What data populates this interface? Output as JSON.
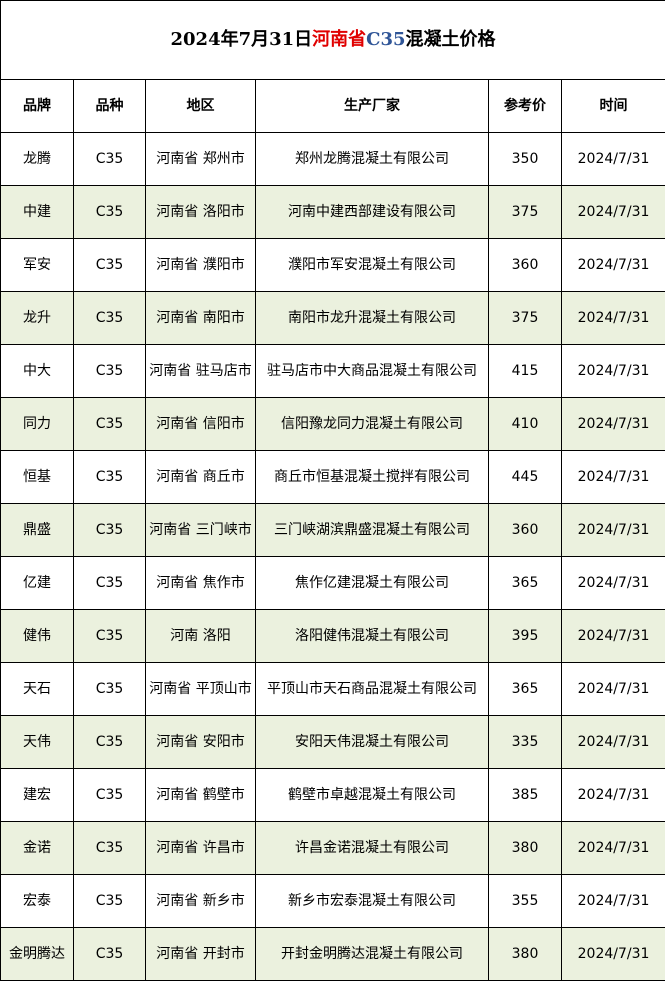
{
  "title": {
    "date": "2024年7月31日",
    "province": "河南省",
    "grade": "C35",
    "suffix": "混凝土价格"
  },
  "table": {
    "header": [
      "品牌",
      "品种",
      "地区",
      "生产厂家",
      "参考价",
      "时间"
    ],
    "rows": [
      [
        "龙腾",
        "C35",
        "河南省 郑州市",
        "郑州龙腾混凝土有限公司",
        350,
        "2024/7/31"
      ],
      [
        "中建",
        "C35",
        "河南省 洛阳市",
        "河南中建西部建设有限公司",
        375,
        "2024/7/31"
      ],
      [
        "军安",
        "C35",
        "河南省 濮阳市",
        "濮阳市军安混凝土有限公司",
        360,
        "2024/7/31"
      ],
      [
        "龙升",
        "C35",
        "河南省 南阳市",
        "南阳市龙升混凝土有限公司",
        375,
        "2024/7/31"
      ],
      [
        "中大",
        "C35",
        "河南省 驻马店市",
        "驻马店市中大商品混凝土有限公司",
        415,
        "2024/7/31"
      ],
      [
        "同力",
        "C35",
        "河南省 信阳市",
        "信阳豫龙同力混凝土有限公司",
        410,
        "2024/7/31"
      ],
      [
        "恒基",
        "C35",
        "河南省 商丘市",
        "商丘市恒基混凝土搅拌有限公司",
        445,
        "2024/7/31"
      ],
      [
        "鼎盛",
        "C35",
        "河南省 三门峡市",
        "三门峡湖滨鼎盛混凝土有限公司",
        360,
        "2024/7/31"
      ],
      [
        "亿建",
        "C35",
        "河南省 焦作市",
        "焦作亿建混凝土有限公司",
        365,
        "2024/7/31"
      ],
      [
        "健伟",
        "C35",
        "河南 洛阳",
        "洛阳健伟混凝土有限公司",
        395,
        "2024/7/31"
      ],
      [
        "天石",
        "C35",
        "河南省 平顶山市",
        "平顶山市天石商品混凝土有限公司",
        365,
        "2024/7/31"
      ],
      [
        "天伟",
        "C35",
        "河南省 安阳市",
        "安阳天伟混凝土有限公司",
        335,
        "2024/7/31"
      ],
      [
        "建宏",
        "C35",
        "河南省 鹤壁市",
        "鹤壁市卓越混凝土有限公司",
        385,
        "2024/7/31"
      ],
      [
        "金诺",
        "C35",
        "河南省 许昌市",
        "许昌金诺混凝土有限公司",
        380,
        "2024/7/31"
      ],
      [
        "宏泰",
        "C35",
        "河南省 新乡市",
        "新乡市宏泰混凝土有限公司",
        355,
        "2024/7/31"
      ],
      [
        "金明腾达",
        "C35",
        "河南省 开封市",
        "开封金明腾达混凝土有限公司",
        380,
        "2024/7/31"
      ]
    ]
  }
}
